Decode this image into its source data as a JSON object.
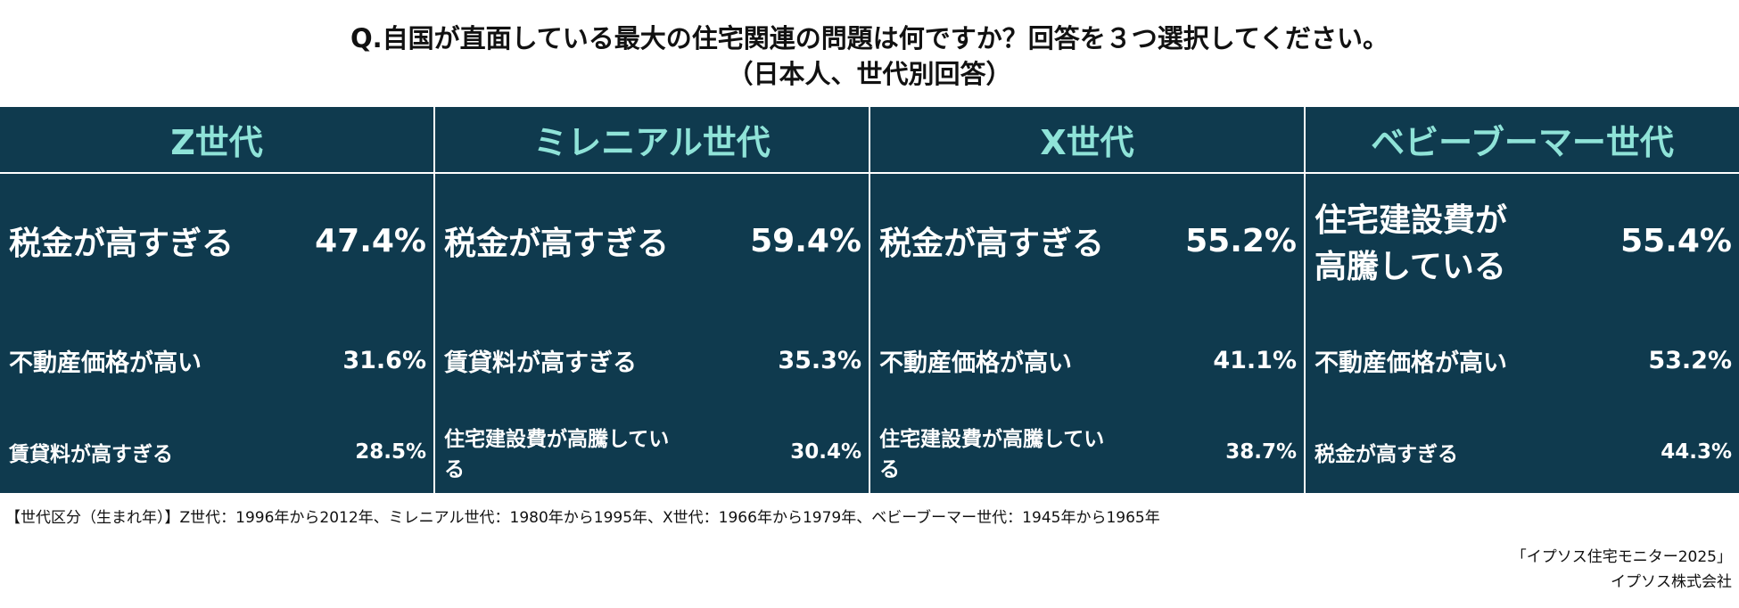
{
  "header": {
    "title": "Q.自国が直面している最大の住宅関連の問題は何ですか？回答を３つ選択してください。",
    "subtitle": "（日本人、世代別回答）"
  },
  "columns": [
    {
      "header": "Z世代",
      "items": [
        {
          "label": "税金が高すぎる",
          "value": "47.4%"
        },
        {
          "label": "不動産価格が高い",
          "value": "31.6%"
        },
        {
          "label": "賃貸料が高すぎる",
          "value": "28.5%"
        }
      ]
    },
    {
      "header": "ミレニアル世代",
      "items": [
        {
          "label": "税金が高すぎる",
          "value": "59.4%"
        },
        {
          "label": "賃貸料が高すぎる",
          "value": "35.3%"
        },
        {
          "label": "住宅建設費が高騰している",
          "value": "30.4%"
        }
      ]
    },
    {
      "header": "X世代",
      "items": [
        {
          "label": "税金が高すぎる",
          "value": "55.2%"
        },
        {
          "label": "不動産価格が高い",
          "value": "41.1%"
        },
        {
          "label": "住宅建設費が高騰している",
          "value": "38.7%"
        }
      ]
    },
    {
      "header": "ベビーブーマー世代",
      "items": [
        {
          "label": "住宅建設費が高騰している",
          "value": "55.4%"
        },
        {
          "label": "不動産価格が高い",
          "value": "53.2%"
        },
        {
          "label": "税金が高すぎる",
          "value": "44.3%"
        }
      ]
    }
  ],
  "footnote": "【世代区分（生まれ年）】Z世代：1996年から2012年、ミレニアル世代：1980年から1995年、X世代：1966年から1979年、ベビーブーマー世代：1945年から1965年",
  "source": [
    "「イプソス住宅モニター2025」",
    "イプソス株式会社"
  ]
}
